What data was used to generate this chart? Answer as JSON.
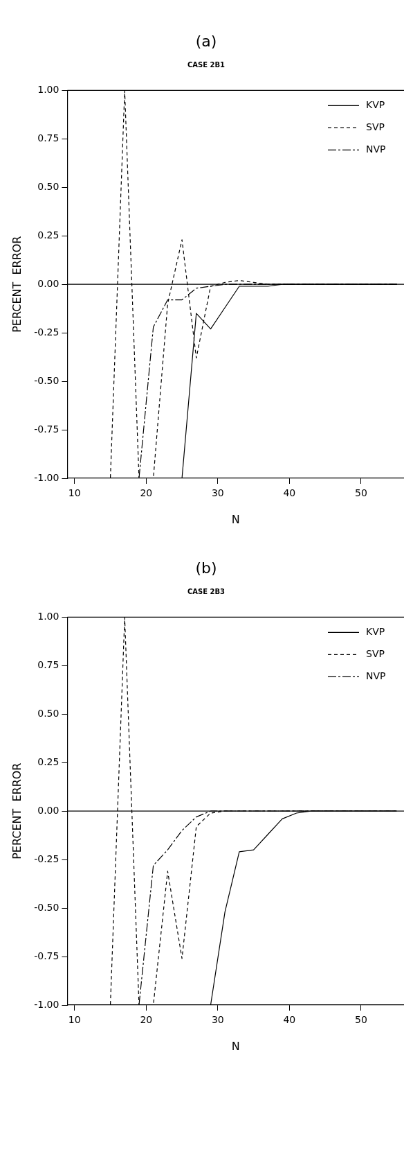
{
  "chart_data": [
    {
      "type": "line",
      "title": "(a)",
      "subtitle": "CASE 2B1",
      "xlabel": "N",
      "ylabel": "PERCENT  ERROR",
      "xlim": [
        9,
        56
      ],
      "xticks": [
        10,
        20,
        30,
        40,
        50
      ],
      "ylim": [
        -1,
        1
      ],
      "yticks": [
        {
          "value": -1,
          "label": "-1.00"
        },
        {
          "value": -0.75,
          "label": "-0.75"
        },
        {
          "value": -0.5,
          "label": "-0.50"
        },
        {
          "value": -0.25,
          "label": "-0.25"
        },
        {
          "value": 0,
          "label": "0.00"
        },
        {
          "value": 0.25,
          "label": "0.25"
        },
        {
          "value": 0.5,
          "label": "0.50"
        },
        {
          "value": 0.75,
          "label": "0.75"
        },
        {
          "value": 1,
          "label": "1.00"
        }
      ],
      "grid": false,
      "legend": "top right",
      "marker": "none",
      "ref_lines": [
        {
          "axis": "y",
          "value": 0,
          "color": "#000000"
        }
      ],
      "x": [
        9,
        11,
        13,
        15,
        17,
        19,
        21,
        23,
        25,
        27,
        29,
        31,
        33,
        35,
        37,
        39,
        41,
        43,
        45,
        47,
        49,
        51,
        53,
        55
      ],
      "series": [
        {
          "name": "KVP",
          "color": "#000000",
          "line_style": "solid",
          "values": [
            -1,
            -1,
            -1,
            -1,
            -1,
            -1,
            -1,
            -1,
            -1,
            -0.15,
            -0.23,
            -0.12,
            -0.01,
            -0.01,
            -0.01,
            0,
            0,
            0,
            0,
            0,
            0,
            0,
            0,
            0
          ]
        },
        {
          "name": "SVP",
          "color": "#000000",
          "line_style": "dashed",
          "values": [
            -1,
            -1,
            -1,
            -1,
            1,
            -1,
            -1,
            -0.1,
            0.23,
            -0.38,
            -0.01,
            0.01,
            0.02,
            0.01,
            0,
            0,
            0,
            0,
            0,
            0,
            0,
            0,
            0,
            0
          ]
        },
        {
          "name": "NVP",
          "color": "#000000",
          "line_style": "dashdot",
          "values": [
            -1,
            -1,
            -1,
            -1,
            -1,
            -1,
            -0.22,
            -0.08,
            -0.08,
            -0.02,
            -0.01,
            0,
            0,
            0,
            0,
            0,
            0,
            0,
            0,
            0,
            0,
            0,
            0,
            0
          ]
        }
      ]
    },
    {
      "type": "line",
      "title": "(b)",
      "subtitle": "CASE 2B3",
      "xlabel": "N",
      "ylabel": "PERCENT  ERROR",
      "xlim": [
        9,
        56
      ],
      "xticks": [
        10,
        20,
        30,
        40,
        50
      ],
      "ylim": [
        -1,
        1
      ],
      "yticks": [
        {
          "value": -1,
          "label": "-1.00"
        },
        {
          "value": -0.75,
          "label": "-0.75"
        },
        {
          "value": -0.5,
          "label": "-0.50"
        },
        {
          "value": -0.25,
          "label": "-0.25"
        },
        {
          "value": 0,
          "label": "0.00"
        },
        {
          "value": 0.25,
          "label": "0.25"
        },
        {
          "value": 0.5,
          "label": "0.50"
        },
        {
          "value": 0.75,
          "label": "0.75"
        },
        {
          "value": 1,
          "label": "1.00"
        }
      ],
      "grid": false,
      "legend": "top right",
      "marker": "none",
      "ref_lines": [
        {
          "axis": "y",
          "value": 0,
          "color": "#000000"
        }
      ],
      "x": [
        9,
        11,
        13,
        15,
        17,
        19,
        21,
        23,
        25,
        27,
        29,
        31,
        33,
        35,
        37,
        39,
        41,
        43,
        45,
        47,
        49,
        51,
        53,
        55
      ],
      "series": [
        {
          "name": "KVP",
          "color": "#000000",
          "line_style": "solid",
          "values": [
            -1,
            -1,
            -1,
            -1,
            -1,
            -1,
            -1,
            -1,
            -1,
            -1,
            -1,
            -0.52,
            -0.21,
            -0.2,
            -0.12,
            -0.04,
            -0.01,
            0,
            0,
            0,
            0,
            0,
            0,
            0
          ]
        },
        {
          "name": "SVP",
          "color": "#000000",
          "line_style": "dashed",
          "values": [
            -1,
            -1,
            -1,
            -1,
            1,
            -1,
            -1,
            -0.31,
            -0.76,
            -0.08,
            -0.01,
            0,
            0,
            0,
            0,
            0,
            0,
            0,
            0,
            0,
            0,
            0,
            0,
            0
          ]
        },
        {
          "name": "NVP",
          "color": "#000000",
          "line_style": "dashdot",
          "values": [
            -1,
            -1,
            -1,
            -1,
            -1,
            -1,
            -0.28,
            -0.2,
            -0.1,
            -0.03,
            0,
            0,
            0,
            0,
            0,
            0,
            0,
            0,
            0,
            0,
            0,
            0,
            0,
            0
          ]
        }
      ]
    }
  ]
}
